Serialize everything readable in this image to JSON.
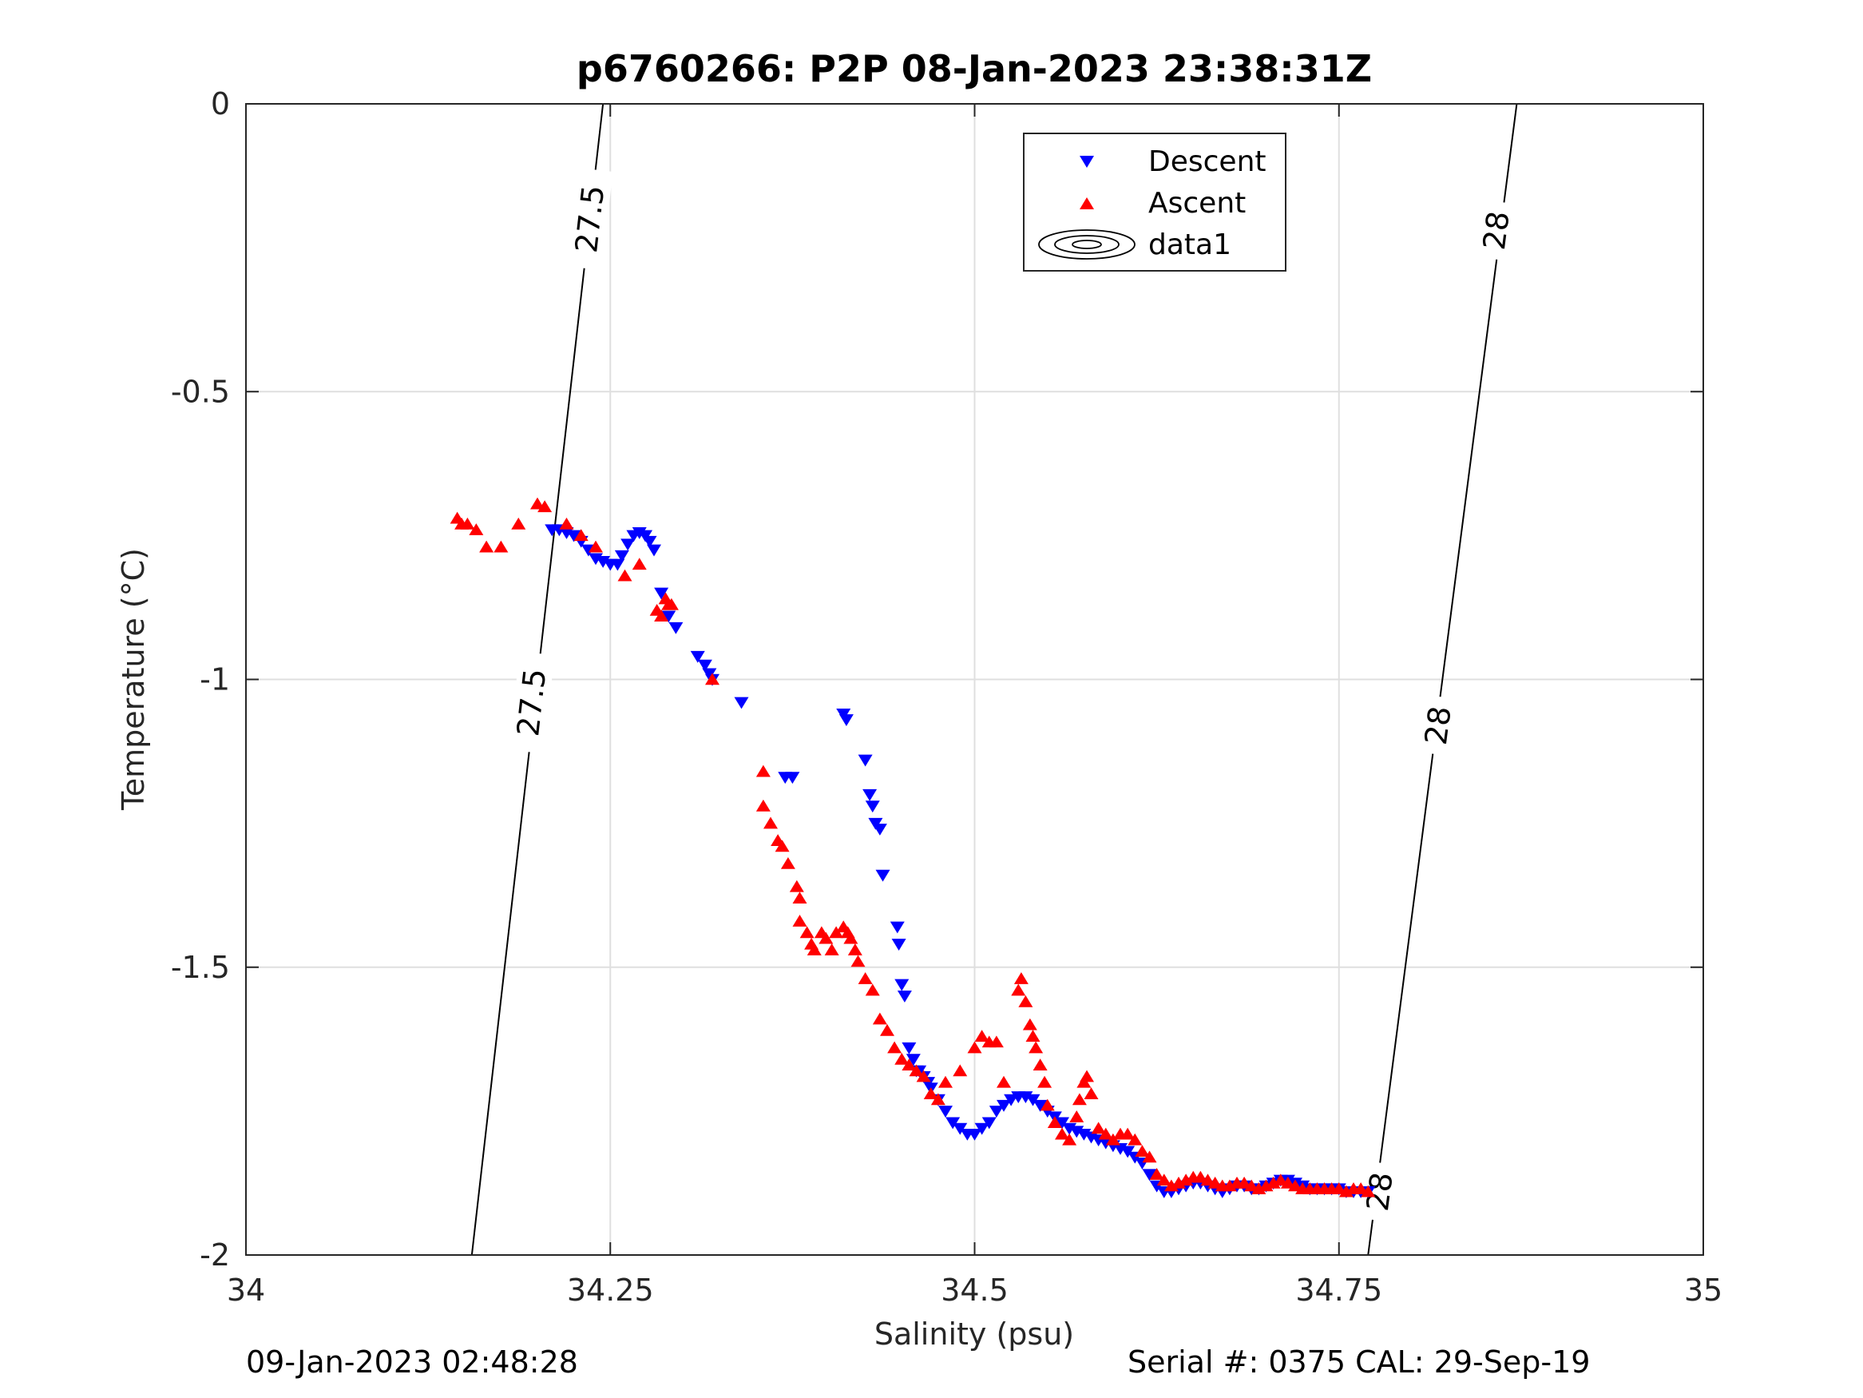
{
  "chart_data": {
    "type": "scatter",
    "title": "p6760266: P2P 08-Jan-2023 23:38:31Z",
    "xlabel": "Salinity (psu)",
    "ylabel": "Temperature (°C)",
    "xlim": [
      34,
      35
    ],
    "ylim": [
      -2,
      0
    ],
    "xticks": [
      34,
      34.25,
      34.5,
      34.75,
      35
    ],
    "xtick_labels": [
      "34",
      "34.25",
      "34.5",
      "34.75",
      "35"
    ],
    "yticks": [
      -2,
      -1.5,
      -1,
      -0.5,
      0
    ],
    "ytick_labels": [
      "-2",
      "-1.5",
      "-1",
      "-0.5",
      "0"
    ],
    "grid": true,
    "legend_position": "top-center",
    "legend": [
      "Descent",
      "Ascent",
      "data1"
    ],
    "colors": {
      "descent": "#0000ff",
      "ascent": "#ff0000",
      "contour": "#000000",
      "grid": "#dfdfdf",
      "axis": "#262626"
    },
    "series": [
      {
        "name": "Descent",
        "marker": "triangle-down",
        "points": [
          [
            34.21,
            -0.74
          ],
          [
            34.215,
            -0.74
          ],
          [
            34.22,
            -0.745
          ],
          [
            34.225,
            -0.75
          ],
          [
            34.23,
            -0.76
          ],
          [
            34.235,
            -0.775
          ],
          [
            34.24,
            -0.79
          ],
          [
            34.245,
            -0.795
          ],
          [
            34.25,
            -0.8
          ],
          [
            34.255,
            -0.8
          ],
          [
            34.258,
            -0.785
          ],
          [
            34.262,
            -0.765
          ],
          [
            34.266,
            -0.75
          ],
          [
            34.27,
            -0.745
          ],
          [
            34.274,
            -0.75
          ],
          [
            34.277,
            -0.76
          ],
          [
            34.28,
            -0.775
          ],
          [
            34.285,
            -0.85
          ],
          [
            34.29,
            -0.89
          ],
          [
            34.295,
            -0.91
          ],
          [
            34.31,
            -0.96
          ],
          [
            34.315,
            -0.975
          ],
          [
            34.318,
            -0.99
          ],
          [
            34.32,
            -1.0
          ],
          [
            34.34,
            -1.04
          ],
          [
            34.37,
            -1.17
          ],
          [
            34.375,
            -1.17
          ],
          [
            34.41,
            -1.06
          ],
          [
            34.412,
            -1.07
          ],
          [
            34.425,
            -1.14
          ],
          [
            34.428,
            -1.2
          ],
          [
            34.43,
            -1.22
          ],
          [
            34.432,
            -1.25
          ],
          [
            34.435,
            -1.26
          ],
          [
            34.437,
            -1.34
          ],
          [
            34.447,
            -1.43
          ],
          [
            34.448,
            -1.46
          ],
          [
            34.45,
            -1.53
          ],
          [
            34.452,
            -1.55
          ],
          [
            34.455,
            -1.64
          ],
          [
            34.458,
            -1.66
          ],
          [
            34.46,
            -1.68
          ],
          [
            34.462,
            -1.68
          ],
          [
            34.465,
            -1.69
          ],
          [
            34.468,
            -1.7
          ],
          [
            34.47,
            -1.71
          ],
          [
            34.475,
            -1.73
          ],
          [
            34.48,
            -1.75
          ],
          [
            34.485,
            -1.77
          ],
          [
            34.49,
            -1.78
          ],
          [
            34.495,
            -1.79
          ],
          [
            34.5,
            -1.79
          ],
          [
            34.505,
            -1.78
          ],
          [
            34.51,
            -1.77
          ],
          [
            34.515,
            -1.75
          ],
          [
            34.52,
            -1.74
          ],
          [
            34.525,
            -1.73
          ],
          [
            34.53,
            -1.725
          ],
          [
            34.535,
            -1.725
          ],
          [
            34.54,
            -1.73
          ],
          [
            34.545,
            -1.74
          ],
          [
            34.55,
            -1.75
          ],
          [
            34.555,
            -1.76
          ],
          [
            34.56,
            -1.77
          ],
          [
            34.565,
            -1.78
          ],
          [
            34.57,
            -1.785
          ],
          [
            34.575,
            -1.79
          ],
          [
            34.58,
            -1.795
          ],
          [
            34.585,
            -1.8
          ],
          [
            34.59,
            -1.805
          ],
          [
            34.595,
            -1.81
          ],
          [
            34.6,
            -1.815
          ],
          [
            34.605,
            -1.82
          ],
          [
            34.61,
            -1.83
          ],
          [
            34.615,
            -1.84
          ],
          [
            34.62,
            -1.86
          ],
          [
            34.625,
            -1.88
          ],
          [
            34.63,
            -1.89
          ],
          [
            34.635,
            -1.89
          ],
          [
            34.64,
            -1.885
          ],
          [
            34.645,
            -1.88
          ],
          [
            34.65,
            -1.875
          ],
          [
            34.655,
            -1.875
          ],
          [
            34.66,
            -1.88
          ],
          [
            34.665,
            -1.885
          ],
          [
            34.67,
            -1.89
          ],
          [
            34.675,
            -1.885
          ],
          [
            34.68,
            -1.88
          ],
          [
            34.685,
            -1.88
          ],
          [
            34.69,
            -1.885
          ],
          [
            34.695,
            -1.885
          ],
          [
            34.7,
            -1.88
          ],
          [
            34.705,
            -1.875
          ],
          [
            34.71,
            -1.87
          ],
          [
            34.715,
            -1.87
          ],
          [
            34.72,
            -1.875
          ],
          [
            34.725,
            -1.88
          ],
          [
            34.73,
            -1.885
          ],
          [
            34.735,
            -1.885
          ],
          [
            34.74,
            -1.885
          ],
          [
            34.745,
            -1.885
          ],
          [
            34.75,
            -1.885
          ],
          [
            34.755,
            -1.89
          ],
          [
            34.76,
            -1.89
          ],
          [
            34.765,
            -1.89
          ],
          [
            34.77,
            -1.89
          ]
        ]
      },
      {
        "name": "Ascent",
        "marker": "triangle-up",
        "points": [
          [
            34.145,
            -0.72
          ],
          [
            34.148,
            -0.73
          ],
          [
            34.152,
            -0.73
          ],
          [
            34.158,
            -0.74
          ],
          [
            34.165,
            -0.77
          ],
          [
            34.175,
            -0.77
          ],
          [
            34.187,
            -0.73
          ],
          [
            34.2,
            -0.695
          ],
          [
            34.205,
            -0.7
          ],
          [
            34.22,
            -0.73
          ],
          [
            34.23,
            -0.75
          ],
          [
            34.24,
            -0.77
          ],
          [
            34.26,
            -0.82
          ],
          [
            34.27,
            -0.8
          ],
          [
            34.282,
            -0.88
          ],
          [
            34.285,
            -0.89
          ],
          [
            34.288,
            -0.86
          ],
          [
            34.29,
            -0.87
          ],
          [
            34.292,
            -0.87
          ],
          [
            34.32,
            -1.0
          ],
          [
            34.355,
            -1.16
          ],
          [
            34.355,
            -1.22
          ],
          [
            34.36,
            -1.25
          ],
          [
            34.365,
            -1.28
          ],
          [
            34.368,
            -1.29
          ],
          [
            34.372,
            -1.32
          ],
          [
            34.378,
            -1.36
          ],
          [
            34.38,
            -1.38
          ],
          [
            34.38,
            -1.42
          ],
          [
            34.385,
            -1.44
          ],
          [
            34.388,
            -1.46
          ],
          [
            34.39,
            -1.47
          ],
          [
            34.395,
            -1.44
          ],
          [
            34.398,
            -1.45
          ],
          [
            34.402,
            -1.47
          ],
          [
            34.405,
            -1.44
          ],
          [
            34.41,
            -1.43
          ],
          [
            34.413,
            -1.44
          ],
          [
            34.415,
            -1.45
          ],
          [
            34.418,
            -1.47
          ],
          [
            34.42,
            -1.49
          ],
          [
            34.425,
            -1.52
          ],
          [
            34.43,
            -1.54
          ],
          [
            34.435,
            -1.59
          ],
          [
            34.44,
            -1.61
          ],
          [
            34.445,
            -1.64
          ],
          [
            34.45,
            -1.66
          ],
          [
            34.455,
            -1.67
          ],
          [
            34.46,
            -1.68
          ],
          [
            34.465,
            -1.69
          ],
          [
            34.47,
            -1.72
          ],
          [
            34.475,
            -1.73
          ],
          [
            34.48,
            -1.7
          ],
          [
            34.49,
            -1.68
          ],
          [
            34.5,
            -1.64
          ],
          [
            34.505,
            -1.62
          ],
          [
            34.51,
            -1.63
          ],
          [
            34.515,
            -1.63
          ],
          [
            34.52,
            -1.7
          ],
          [
            34.53,
            -1.54
          ],
          [
            34.532,
            -1.52
          ],
          [
            34.535,
            -1.56
          ],
          [
            34.538,
            -1.6
          ],
          [
            34.54,
            -1.62
          ],
          [
            34.542,
            -1.64
          ],
          [
            34.545,
            -1.67
          ],
          [
            34.548,
            -1.7
          ],
          [
            34.55,
            -1.74
          ],
          [
            34.555,
            -1.77
          ],
          [
            34.56,
            -1.79
          ],
          [
            34.565,
            -1.8
          ],
          [
            34.57,
            -1.76
          ],
          [
            34.572,
            -1.73
          ],
          [
            34.575,
            -1.7
          ],
          [
            34.577,
            -1.69
          ],
          [
            34.58,
            -1.72
          ],
          [
            34.585,
            -1.78
          ],
          [
            34.59,
            -1.79
          ],
          [
            34.595,
            -1.8
          ],
          [
            34.6,
            -1.79
          ],
          [
            34.605,
            -1.79
          ],
          [
            34.61,
            -1.8
          ],
          [
            34.615,
            -1.82
          ],
          [
            34.62,
            -1.83
          ],
          [
            34.625,
            -1.86
          ],
          [
            34.63,
            -1.87
          ],
          [
            34.635,
            -1.88
          ],
          [
            34.64,
            -1.875
          ],
          [
            34.645,
            -1.87
          ],
          [
            34.65,
            -1.865
          ],
          [
            34.655,
            -1.865
          ],
          [
            34.66,
            -1.87
          ],
          [
            34.665,
            -1.875
          ],
          [
            34.67,
            -1.88
          ],
          [
            34.675,
            -1.88
          ],
          [
            34.68,
            -1.875
          ],
          [
            34.685,
            -1.875
          ],
          [
            34.69,
            -1.88
          ],
          [
            34.695,
            -1.885
          ],
          [
            34.7,
            -1.88
          ],
          [
            34.705,
            -1.875
          ],
          [
            34.71,
            -1.87
          ],
          [
            34.715,
            -1.875
          ],
          [
            34.72,
            -1.88
          ],
          [
            34.725,
            -1.885
          ],
          [
            34.73,
            -1.885
          ],
          [
            34.735,
            -1.885
          ],
          [
            34.74,
            -1.885
          ],
          [
            34.745,
            -1.885
          ],
          [
            34.75,
            -1.885
          ],
          [
            34.755,
            -1.89
          ],
          [
            34.76,
            -1.885
          ],
          [
            34.765,
            -1.885
          ],
          [
            34.77,
            -1.89
          ]
        ]
      },
      {
        "name": "data1",
        "type": "contour",
        "lines": [
          {
            "level": "27.5",
            "points": [
              [
                34.155,
                -2.0
              ],
              [
                34.245,
                0.0
              ]
            ],
            "label_positions": [
              [
                34.196,
                -1.04
              ],
              [
                34.236,
                -0.2
              ]
            ]
          },
          {
            "level": "28",
            "points": [
              [
                34.77,
                -2.0
              ],
              [
                34.872,
                0.0
              ]
            ],
            "label_positions": [
              [
                34.778,
                -1.89
              ],
              [
                34.818,
                -1.08
              ],
              [
                34.858,
                -0.22
              ]
            ]
          }
        ]
      }
    ]
  },
  "footer": {
    "left": "09-Jan-2023 02:48:28",
    "right": "Serial #: 0375  CAL: 29-Sep-19"
  }
}
